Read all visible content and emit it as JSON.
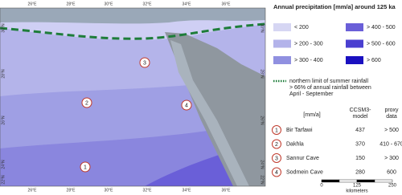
{
  "title": "Annual precipitation [mm/a]  around 125 ka",
  "legend": [
    "< 200",
    "> 200 - 300",
    "> 300 - 400",
    "> 400 - 500",
    "> 500 - 600",
    "> 600"
  ],
  "summer_rainfall": [
    "northern limit of summer rainfall",
    "> 66% of annual rainfall between",
    "April - September"
  ],
  "table": {
    "header": {
      "unit": "[mm/a]",
      "model": [
        "CCSM3-",
        "model"
      ],
      "proxy": [
        "proxy",
        "data"
      ]
    },
    "rows": [
      [
        "1",
        "Bir Tarfawi",
        "437",
        "> 500"
      ],
      [
        "2",
        "Dakhla",
        "370",
        "410 - 670"
      ],
      [
        "3",
        "Sannur Cave",
        "150",
        "> 300"
      ],
      [
        "4",
        "Sodmein Cave",
        "280",
        "600"
      ]
    ]
  },
  "map": {
    "lon_labels": [
      "26°E",
      "28°E",
      "30°E",
      "32°E",
      "34°E",
      "36°E"
    ],
    "lat_labels": [
      "30°N",
      "28°N",
      "26°N",
      "24°N",
      "22°N"
    ],
    "markers": [
      "3",
      "2",
      "4",
      "1"
    ]
  },
  "scale": {
    "labels": [
      "0",
      "125",
      "250"
    ],
    "unit": "kilometers"
  }
}
